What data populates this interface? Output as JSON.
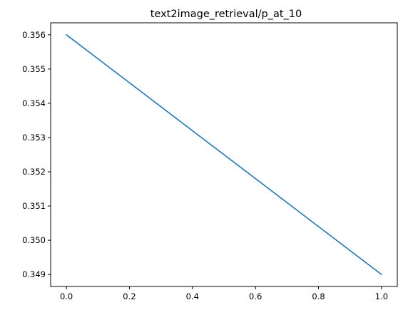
{
  "chart_data": {
    "type": "line",
    "title": "text2image_retrieval/p_at_10",
    "xlabel": "",
    "ylabel": "",
    "xlim": [
      -0.05,
      1.05
    ],
    "ylim": [
      0.34865,
      0.35635
    ],
    "x_ticks": [
      0.0,
      0.2,
      0.4,
      0.6,
      0.8,
      1.0
    ],
    "x_tick_labels": [
      "0.0",
      "0.2",
      "0.4",
      "0.6",
      "0.8",
      "1.0"
    ],
    "y_ticks": [
      0.349,
      0.35,
      0.351,
      0.352,
      0.353,
      0.354,
      0.355,
      0.356
    ],
    "y_tick_labels": [
      "0.349",
      "0.350",
      "0.351",
      "0.352",
      "0.353",
      "0.354",
      "0.355",
      "0.356"
    ],
    "grid": false,
    "series": [
      {
        "color": "#1f77b4",
        "x": [
          0.0,
          1.0
        ],
        "y": [
          0.356,
          0.349
        ]
      }
    ]
  }
}
